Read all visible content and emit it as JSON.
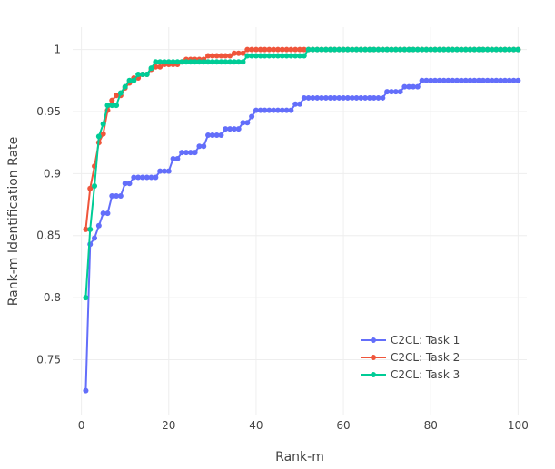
{
  "chart_data": {
    "type": "line",
    "title": "",
    "xlabel": "Rank-m",
    "ylabel": "Rank-m Identification Rate",
    "xlim": [
      -2,
      102
    ],
    "ylim": [
      0.705,
      1.018
    ],
    "x_ticks": [
      0,
      20,
      40,
      60,
      80,
      100
    ],
    "x_tick_labels": [
      "0",
      "20",
      "40",
      "60",
      "80",
      "100"
    ],
    "y_ticks": [
      0.75,
      0.8,
      0.85,
      0.9,
      0.95,
      1.0
    ],
    "y_tick_labels": [
      "0.75",
      "0.8",
      "0.85",
      "0.9",
      "0.95",
      "1"
    ],
    "grid": true,
    "legend_position": "bottom-right",
    "series": [
      {
        "name": "C2CL: Task 1",
        "color": "#636efa",
        "breakpoints": [
          [
            1,
            0.725
          ],
          [
            2,
            0.843
          ],
          [
            3,
            0.848
          ],
          [
            4,
            0.858
          ],
          [
            5,
            0.868
          ],
          [
            7,
            0.882
          ],
          [
            10,
            0.892
          ],
          [
            12,
            0.897
          ],
          [
            18,
            0.902
          ],
          [
            21,
            0.912
          ],
          [
            23,
            0.917
          ],
          [
            27,
            0.922
          ],
          [
            29,
            0.931
          ],
          [
            33,
            0.936
          ],
          [
            37,
            0.941
          ],
          [
            39,
            0.946
          ],
          [
            40,
            0.951
          ],
          [
            49,
            0.956
          ],
          [
            51,
            0.961
          ],
          [
            70,
            0.966
          ],
          [
            74,
            0.97
          ],
          [
            78,
            0.975
          ]
        ]
      },
      {
        "name": "C2CL: Task 2",
        "color": "#ef553b",
        "breakpoints": [
          [
            1,
            0.855
          ],
          [
            2,
            0.888
          ],
          [
            3,
            0.906
          ],
          [
            4,
            0.925
          ],
          [
            5,
            0.932
          ],
          [
            6,
            0.951
          ],
          [
            7,
            0.959
          ],
          [
            8,
            0.963
          ],
          [
            10,
            0.969
          ],
          [
            11,
            0.973
          ],
          [
            12,
            0.977
          ],
          [
            14,
            0.98
          ],
          [
            16,
            0.984
          ],
          [
            17,
            0.986
          ],
          [
            19,
            0.988
          ],
          [
            23,
            0.99
          ],
          [
            24,
            0.992
          ],
          [
            29,
            0.995
          ],
          [
            35,
            0.997
          ],
          [
            38,
            1.0
          ]
        ]
      },
      {
        "name": "C2CL: Task 3",
        "color": "#00cc96",
        "breakpoints": [
          [
            1,
            0.8
          ],
          [
            2,
            0.855
          ],
          [
            3,
            0.89
          ],
          [
            4,
            0.93
          ],
          [
            5,
            0.94
          ],
          [
            6,
            0.955
          ],
          [
            9,
            0.965
          ],
          [
            10,
            0.97
          ],
          [
            11,
            0.975
          ],
          [
            13,
            0.98
          ],
          [
            16,
            0.985
          ],
          [
            17,
            0.99
          ],
          [
            38,
            0.995
          ],
          [
            52,
            1.0
          ]
        ]
      }
    ],
    "x_max": 100
  }
}
